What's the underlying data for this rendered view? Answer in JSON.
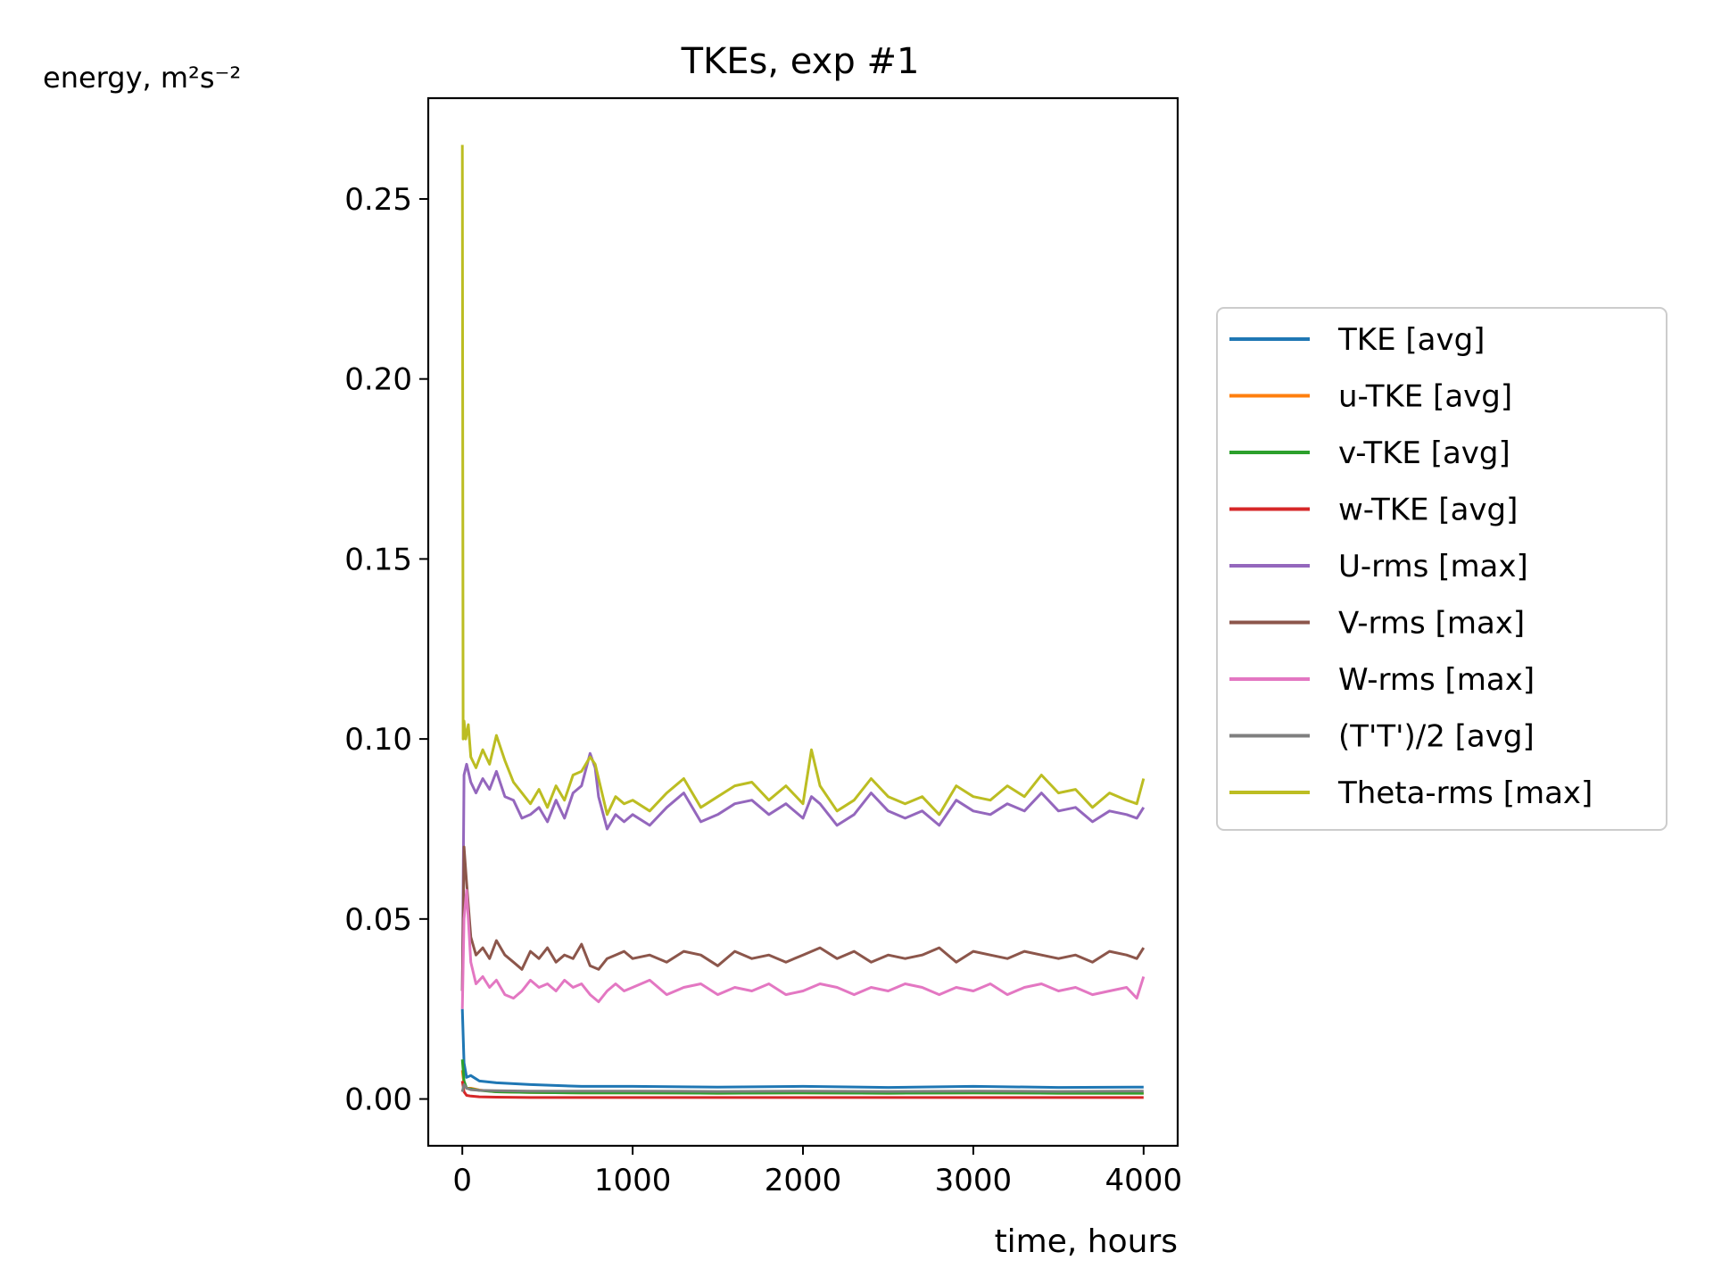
{
  "chart_data": {
    "type": "line",
    "title": "TKEs, exp #1",
    "xlabel": "time, hours",
    "ylabel": "energy, m²s⁻²",
    "xlim": [
      -200,
      4200
    ],
    "ylim": [
      -0.013,
      0.278
    ],
    "xticks": [
      0,
      1000,
      2000,
      3000,
      4000
    ],
    "xtick_labels": [
      "0",
      "1000",
      "2000",
      "3000",
      "4000"
    ],
    "yticks": [
      0.0,
      0.05,
      0.1,
      0.15,
      0.2,
      0.25
    ],
    "ytick_labels": [
      "0.00",
      "0.05",
      "0.10",
      "0.15",
      "0.20",
      "0.25"
    ],
    "grid": false,
    "legend_position": "right",
    "series": [
      {
        "name": "TKE [avg]",
        "color": "#1f77b4",
        "x": [
          0,
          10,
          25,
          50,
          100,
          200,
          400,
          700,
          1000,
          1500,
          2000,
          2500,
          3000,
          3500,
          4000
        ],
        "y": [
          0.025,
          0.01,
          0.006,
          0.0065,
          0.005,
          0.0045,
          0.004,
          0.0035,
          0.0035,
          0.0033,
          0.0035,
          0.0032,
          0.0035,
          0.0032,
          0.0033
        ]
      },
      {
        "name": "u-TKE [avg]",
        "color": "#ff7f0e",
        "x": [
          0,
          10,
          25,
          50,
          100,
          200,
          400,
          700,
          1000,
          1500,
          2000,
          2500,
          3000,
          3500,
          4000
        ],
        "y": [
          0.008,
          0.004,
          0.003,
          0.003,
          0.0025,
          0.002,
          0.0018,
          0.0017,
          0.0017,
          0.0016,
          0.0017,
          0.0016,
          0.0017,
          0.0016,
          0.0016
        ]
      },
      {
        "name": "v-TKE [avg]",
        "color": "#2ca02c",
        "x": [
          0,
          10,
          25,
          50,
          100,
          200,
          400,
          700,
          1000,
          1500,
          2000,
          2500,
          3000,
          3500,
          4000
        ],
        "y": [
          0.011,
          0.005,
          0.003,
          0.0028,
          0.0024,
          0.002,
          0.0018,
          0.0017,
          0.0017,
          0.0016,
          0.0017,
          0.0016,
          0.0017,
          0.0016,
          0.0016
        ]
      },
      {
        "name": "w-TKE [avg]",
        "color": "#d62728",
        "x": [
          0,
          10,
          25,
          50,
          100,
          200,
          400,
          700,
          1000,
          1500,
          2000,
          2500,
          3000,
          3500,
          4000
        ],
        "y": [
          0.005,
          0.002,
          0.001,
          0.0008,
          0.0006,
          0.0005,
          0.0004,
          0.0004,
          0.0004,
          0.0004,
          0.0004,
          0.0004,
          0.0004,
          0.0004,
          0.0004
        ]
      },
      {
        "name": "U-rms [max]",
        "color": "#9467bd",
        "x": [
          0,
          10,
          25,
          50,
          80,
          120,
          160,
          200,
          250,
          300,
          350,
          400,
          450,
          500,
          550,
          600,
          650,
          700,
          750,
          780,
          800,
          850,
          900,
          950,
          1000,
          1100,
          1200,
          1300,
          1400,
          1500,
          1600,
          1700,
          1800,
          1900,
          2000,
          2050,
          2100,
          2200,
          2300,
          2400,
          2500,
          2600,
          2700,
          2800,
          2900,
          3000,
          3100,
          3200,
          3300,
          3400,
          3500,
          3600,
          3700,
          3800,
          3900,
          3960,
          4000
        ],
        "y": [
          0.03,
          0.09,
          0.093,
          0.088,
          0.085,
          0.089,
          0.086,
          0.091,
          0.084,
          0.083,
          0.078,
          0.079,
          0.081,
          0.077,
          0.083,
          0.078,
          0.085,
          0.087,
          0.096,
          0.092,
          0.084,
          0.075,
          0.079,
          0.077,
          0.079,
          0.076,
          0.081,
          0.085,
          0.077,
          0.079,
          0.082,
          0.083,
          0.079,
          0.082,
          0.078,
          0.084,
          0.082,
          0.076,
          0.079,
          0.085,
          0.08,
          0.078,
          0.08,
          0.076,
          0.083,
          0.08,
          0.079,
          0.082,
          0.08,
          0.085,
          0.08,
          0.081,
          0.077,
          0.08,
          0.079,
          0.078,
          0.081
        ]
      },
      {
        "name": "V-rms [max]",
        "color": "#8c564b",
        "x": [
          0,
          10,
          25,
          50,
          80,
          120,
          160,
          200,
          250,
          300,
          350,
          400,
          450,
          500,
          550,
          600,
          650,
          700,
          750,
          800,
          850,
          900,
          950,
          1000,
          1100,
          1200,
          1300,
          1400,
          1500,
          1600,
          1700,
          1800,
          1900,
          2000,
          2100,
          2200,
          2300,
          2400,
          2500,
          2600,
          2700,
          2800,
          2900,
          3000,
          3100,
          3200,
          3300,
          3400,
          3500,
          3600,
          3700,
          3800,
          3900,
          3960,
          4000
        ],
        "y": [
          0.03,
          0.07,
          0.06,
          0.045,
          0.04,
          0.042,
          0.039,
          0.044,
          0.04,
          0.038,
          0.036,
          0.041,
          0.039,
          0.042,
          0.038,
          0.04,
          0.039,
          0.043,
          0.037,
          0.036,
          0.039,
          0.04,
          0.041,
          0.039,
          0.04,
          0.038,
          0.041,
          0.04,
          0.037,
          0.041,
          0.039,
          0.04,
          0.038,
          0.04,
          0.042,
          0.039,
          0.041,
          0.038,
          0.04,
          0.039,
          0.04,
          0.042,
          0.038,
          0.041,
          0.04,
          0.039,
          0.041,
          0.04,
          0.039,
          0.04,
          0.038,
          0.041,
          0.04,
          0.039,
          0.042
        ]
      },
      {
        "name": "W-rms [max]",
        "color": "#e377c2",
        "x": [
          0,
          10,
          25,
          50,
          80,
          120,
          160,
          200,
          250,
          300,
          350,
          400,
          450,
          500,
          550,
          600,
          650,
          700,
          750,
          800,
          850,
          900,
          950,
          1000,
          1100,
          1200,
          1300,
          1400,
          1500,
          1600,
          1700,
          1800,
          1900,
          2000,
          2100,
          2200,
          2300,
          2400,
          2500,
          2600,
          2700,
          2800,
          2900,
          3000,
          3100,
          3200,
          3300,
          3400,
          3500,
          3600,
          3700,
          3800,
          3900,
          3960,
          4000
        ],
        "y": [
          0.025,
          0.05,
          0.058,
          0.038,
          0.032,
          0.034,
          0.031,
          0.033,
          0.029,
          0.028,
          0.03,
          0.033,
          0.031,
          0.032,
          0.03,
          0.033,
          0.031,
          0.032,
          0.029,
          0.027,
          0.03,
          0.032,
          0.03,
          0.031,
          0.033,
          0.029,
          0.031,
          0.032,
          0.029,
          0.031,
          0.03,
          0.032,
          0.029,
          0.03,
          0.032,
          0.031,
          0.029,
          0.031,
          0.03,
          0.032,
          0.031,
          0.029,
          0.031,
          0.03,
          0.032,
          0.029,
          0.031,
          0.032,
          0.03,
          0.031,
          0.029,
          0.03,
          0.031,
          0.028,
          0.034
        ]
      },
      {
        "name": "(T'T')/2 [avg]",
        "color": "#7f7f7f",
        "x": [
          0,
          10,
          25,
          50,
          100,
          200,
          400,
          700,
          1000,
          1500,
          2000,
          2500,
          3000,
          3500,
          4000
        ],
        "y": [
          0.002,
          0.004,
          0.003,
          0.0026,
          0.0024,
          0.0023,
          0.0022,
          0.0022,
          0.0022,
          0.0021,
          0.0022,
          0.0021,
          0.0022,
          0.0021,
          0.0022
        ]
      },
      {
        "name": "Theta-rms [max]",
        "color": "#bcbd22",
        "x": [
          0,
          5,
          10,
          20,
          35,
          50,
          80,
          120,
          160,
          200,
          250,
          300,
          350,
          400,
          450,
          500,
          550,
          600,
          650,
          700,
          750,
          780,
          800,
          850,
          900,
          950,
          1000,
          1100,
          1200,
          1300,
          1400,
          1500,
          1600,
          1700,
          1800,
          1900,
          2000,
          2050,
          2100,
          2200,
          2300,
          2400,
          2500,
          2600,
          2700,
          2800,
          2900,
          3000,
          3100,
          3200,
          3300,
          3400,
          3500,
          3600,
          3700,
          3800,
          3900,
          3960,
          4000
        ],
        "y": [
          0.265,
          0.1,
          0.105,
          0.1,
          0.104,
          0.095,
          0.092,
          0.097,
          0.093,
          0.101,
          0.094,
          0.088,
          0.085,
          0.082,
          0.086,
          0.081,
          0.087,
          0.083,
          0.09,
          0.091,
          0.095,
          0.093,
          0.089,
          0.079,
          0.084,
          0.082,
          0.083,
          0.08,
          0.085,
          0.089,
          0.081,
          0.084,
          0.087,
          0.088,
          0.083,
          0.087,
          0.082,
          0.097,
          0.087,
          0.08,
          0.083,
          0.089,
          0.084,
          0.082,
          0.084,
          0.079,
          0.087,
          0.084,
          0.083,
          0.087,
          0.084,
          0.09,
          0.085,
          0.086,
          0.081,
          0.085,
          0.083,
          0.082,
          0.089
        ]
      }
    ]
  }
}
